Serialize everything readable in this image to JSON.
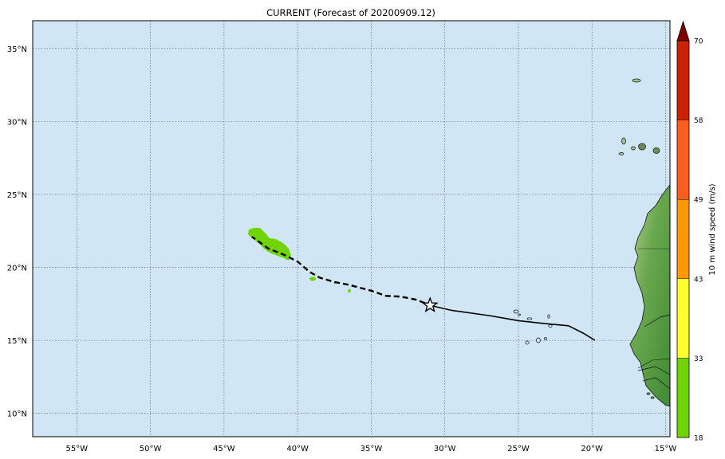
{
  "title": "CURRENT (Forecast of 20200909.12)",
  "map": {
    "lon_range": [
      -58,
      -14.7
    ],
    "lat_range": [
      8.4,
      36.9
    ],
    "lat_ticks": [
      {
        "lat": 35,
        "label": "35°N"
      },
      {
        "lat": 30,
        "label": "30°N"
      },
      {
        "lat": 25,
        "label": "25°N"
      },
      {
        "lat": 20,
        "label": "20°N"
      },
      {
        "lat": 15,
        "label": "15°N"
      },
      {
        "lat": 10,
        "label": "10°N"
      }
    ],
    "lon_ticks": [
      {
        "lon": -55,
        "label": "55°W"
      },
      {
        "lon": -50,
        "label": "50°W"
      },
      {
        "lon": -45,
        "label": "45°W"
      },
      {
        "lon": -40,
        "label": "40°W"
      },
      {
        "lon": -35,
        "label": "35°W"
      },
      {
        "lon": -30,
        "label": "30°W"
      },
      {
        "lon": -25,
        "label": "25°W"
      },
      {
        "lon": -20,
        "label": "20°W"
      },
      {
        "lon": -15,
        "label": "15°W"
      }
    ],
    "ocean_color": "#d0e6f5",
    "land_color": "#4f9e3a",
    "swath_color": "#6fd400",
    "grid": true
  },
  "track": {
    "past": [
      [
        -19.8,
        15.0
      ],
      [
        -20.6,
        15.5
      ],
      [
        -21.6,
        16.0
      ],
      [
        -23.2,
        16.15
      ],
      [
        -25.0,
        16.35
      ],
      [
        -27.0,
        16.7
      ],
      [
        -29.5,
        17.05
      ],
      [
        -30.8,
        17.35
      ]
    ],
    "forecast": [
      [
        -30.8,
        17.35
      ],
      [
        -32.0,
        17.8
      ],
      [
        -33.0,
        18.0
      ],
      [
        -34.0,
        18.05
      ],
      [
        -35.0,
        18.4
      ],
      [
        -36.5,
        18.8
      ],
      [
        -37.5,
        19.0
      ],
      [
        -38.5,
        19.3
      ],
      [
        -39.2,
        19.7
      ],
      [
        -40.0,
        20.4
      ],
      [
        -41.0,
        20.9
      ],
      [
        -42.0,
        21.3
      ],
      [
        -43.1,
        22.1
      ]
    ],
    "current_position": [
      -31.0,
      17.4
    ]
  },
  "colorbar": {
    "label": "10 m wind speed (m/s)",
    "levels": [
      {
        "value": "18",
        "color": "#6fd400"
      },
      {
        "value": "33",
        "color": "#ffff2a"
      },
      {
        "value": "43",
        "color": "#ff9900"
      },
      {
        "value": "49",
        "color": "#ff5c1f"
      },
      {
        "value": "58",
        "color": "#cc2200"
      },
      {
        "value": "70",
        "color": "#7d0000"
      }
    ]
  }
}
